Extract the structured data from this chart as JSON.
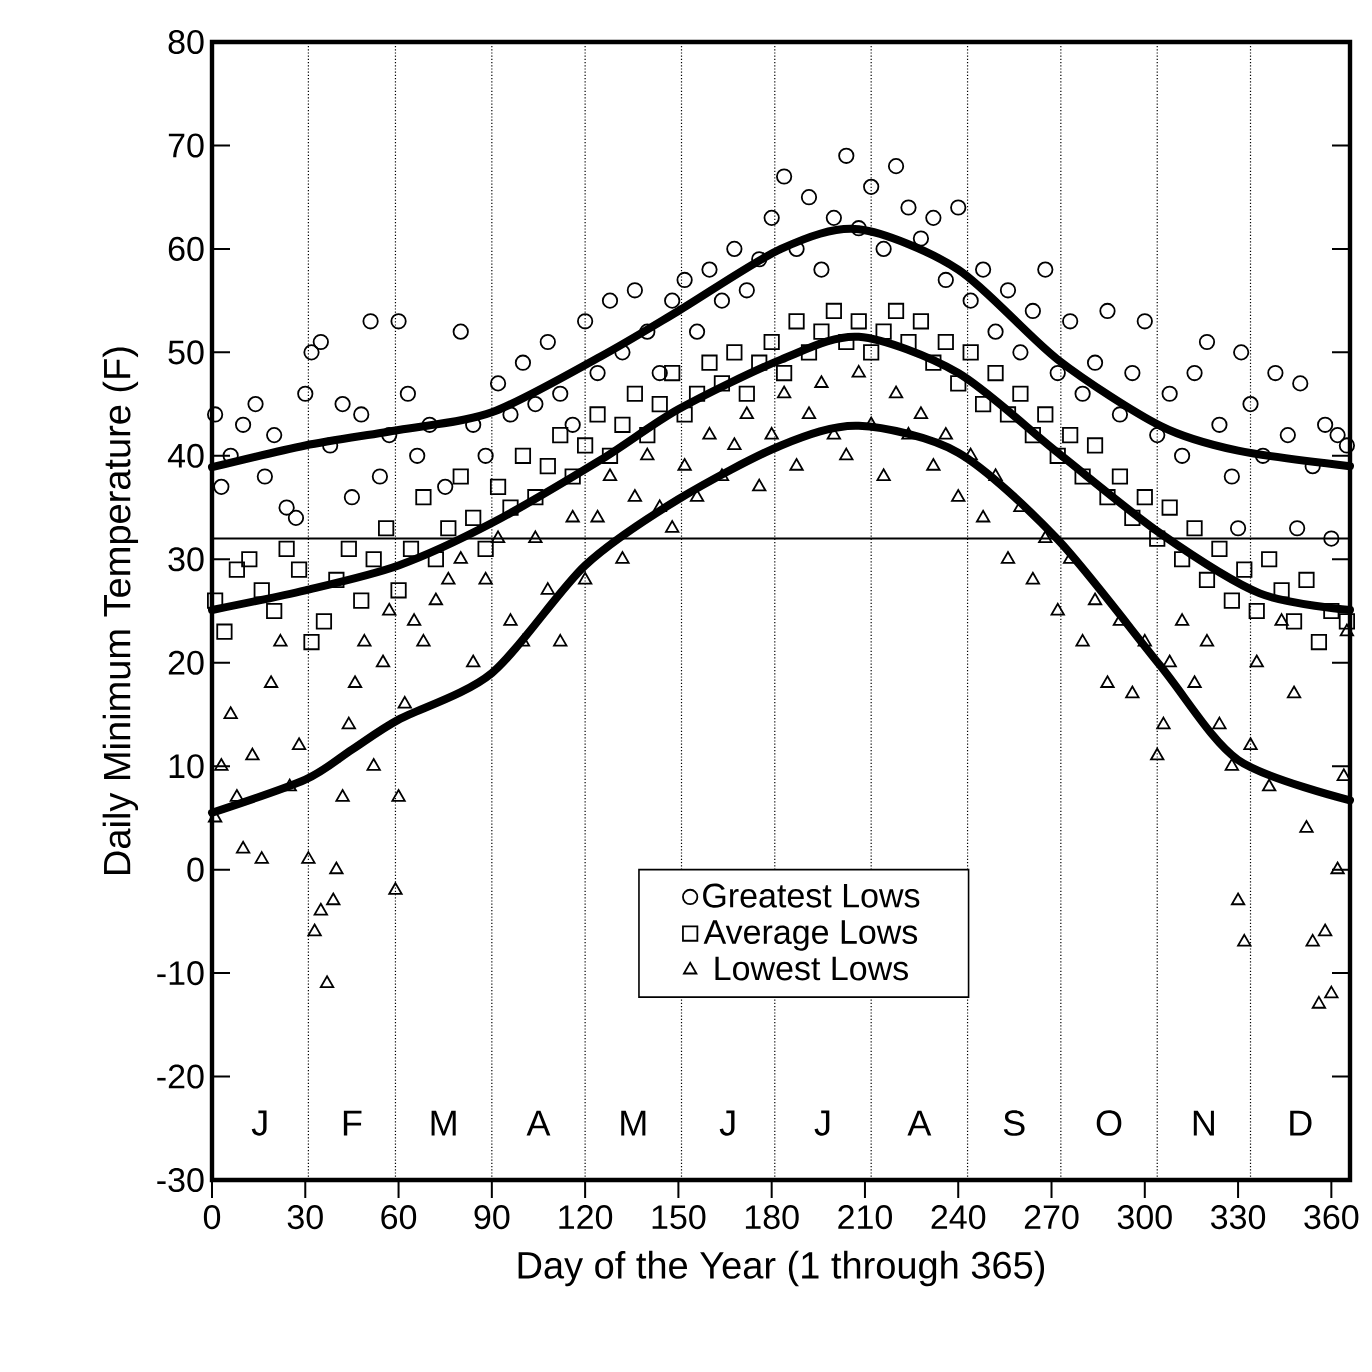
{
  "chart_data": {
    "type": "scatter",
    "xlabel": "Day of the Year (1 through 365)",
    "ylabel": "Daily Minimum Temperature (F)",
    "xlim": [
      0,
      366
    ],
    "ylim": [
      -30,
      80
    ],
    "xticks": [
      0,
      30,
      60,
      90,
      120,
      150,
      180,
      210,
      240,
      270,
      300,
      330,
      360
    ],
    "yticks": [
      -30,
      -20,
      -10,
      0,
      10,
      20,
      30,
      40,
      50,
      60,
      70,
      80
    ],
    "legend": "bottom",
    "series": [
      {
        "name": "Greatest Lows",
        "marker": "circle",
        "color": "#000000",
        "x": [
          1,
          3,
          6,
          10,
          14,
          17,
          20,
          24,
          27,
          30,
          32,
          35,
          38,
          42,
          45,
          48,
          51,
          54,
          57,
          60,
          63,
          66,
          70,
          75,
          80,
          84,
          88,
          92,
          96,
          100,
          104,
          108,
          112,
          116,
          120,
          124,
          128,
          132,
          136,
          140,
          144,
          148,
          152,
          156,
          160,
          164,
          168,
          172,
          176,
          180,
          184,
          188,
          192,
          196,
          200,
          204,
          208,
          212,
          216,
          220,
          224,
          228,
          232,
          236,
          240,
          244,
          248,
          252,
          256,
          260,
          264,
          268,
          272,
          276,
          280,
          284,
          288,
          292,
          296,
          300,
          304,
          308,
          312,
          316,
          320,
          324,
          328,
          330,
          331,
          334,
          338,
          342,
          346,
          349,
          350,
          354,
          358,
          360,
          362,
          365
        ],
        "values": [
          44,
          37,
          40,
          43,
          45,
          38,
          42,
          35,
          34,
          46,
          50,
          51,
          41,
          45,
          36,
          44,
          53,
          38,
          42,
          53,
          46,
          40,
          43,
          37,
          52,
          43,
          40,
          47,
          44,
          49,
          45,
          51,
          46,
          43,
          53,
          48,
          55,
          50,
          56,
          52,
          48,
          55,
          57,
          52,
          58,
          55,
          60,
          56,
          59,
          63,
          67,
          60,
          65,
          58,
          63,
          69,
          62,
          66,
          60,
          68,
          64,
          61,
          63,
          57,
          64,
          55,
          58,
          52,
          56,
          50,
          54,
          58,
          48,
          53,
          46,
          49,
          54,
          44,
          48,
          53,
          42,
          46,
          40,
          48,
          51,
          43,
          38,
          33,
          50,
          45,
          40,
          48,
          42,
          33,
          47,
          39,
          43,
          32,
          42,
          41
        ]
      },
      {
        "name": "Average Lows",
        "marker": "square",
        "color": "#000000",
        "x": [
          1,
          4,
          8,
          12,
          16,
          20,
          24,
          28,
          32,
          36,
          40,
          44,
          48,
          52,
          56,
          60,
          64,
          68,
          72,
          76,
          80,
          84,
          88,
          92,
          96,
          100,
          104,
          108,
          112,
          116,
          120,
          124,
          128,
          132,
          136,
          140,
          144,
          148,
          152,
          156,
          160,
          164,
          168,
          172,
          176,
          180,
          184,
          188,
          192,
          196,
          200,
          204,
          208,
          212,
          216,
          220,
          224,
          228,
          232,
          236,
          240,
          244,
          248,
          252,
          256,
          260,
          264,
          268,
          272,
          276,
          280,
          284,
          288,
          292,
          296,
          300,
          304,
          308,
          312,
          316,
          320,
          324,
          328,
          332,
          336,
          340,
          344,
          348,
          352,
          356,
          360,
          365
        ],
        "values": [
          26,
          23,
          29,
          30,
          27,
          25,
          31,
          29,
          22,
          24,
          28,
          31,
          26,
          30,
          33,
          27,
          31,
          36,
          30,
          33,
          38,
          34,
          31,
          37,
          35,
          40,
          36,
          39,
          42,
          38,
          41,
          44,
          40,
          43,
          46,
          42,
          45,
          48,
          44,
          46,
          49,
          47,
          50,
          46,
          49,
          51,
          48,
          53,
          50,
          52,
          54,
          51,
          53,
          50,
          52,
          54,
          51,
          53,
          49,
          51,
          47,
          50,
          45,
          48,
          44,
          46,
          42,
          44,
          40,
          42,
          38,
          41,
          36,
          38,
          34,
          36,
          32,
          35,
          30,
          33,
          28,
          31,
          26,
          29,
          25,
          30,
          27,
          24,
          28,
          22,
          25,
          24
        ]
      },
      {
        "name": "Lowest Lows",
        "marker": "triangle",
        "color": "#000000",
        "x": [
          1,
          3,
          6,
          8,
          10,
          13,
          16,
          19,
          22,
          25,
          28,
          31,
          33,
          35,
          37,
          39,
          40,
          42,
          44,
          46,
          49,
          52,
          55,
          57,
          59,
          60,
          62,
          65,
          68,
          72,
          76,
          80,
          84,
          88,
          92,
          96,
          100,
          104,
          108,
          112,
          116,
          120,
          124,
          128,
          132,
          136,
          140,
          144,
          148,
          152,
          156,
          160,
          164,
          168,
          172,
          176,
          180,
          184,
          188,
          192,
          196,
          200,
          204,
          208,
          212,
          216,
          220,
          224,
          228,
          232,
          236,
          240,
          244,
          248,
          252,
          256,
          260,
          264,
          268,
          272,
          276,
          280,
          284,
          288,
          292,
          296,
          300,
          304,
          306,
          308,
          312,
          316,
          320,
          324,
          328,
          330,
          332,
          334,
          336,
          340,
          344,
          348,
          352,
          354,
          356,
          358,
          360,
          362,
          364,
          365
        ],
        "values": [
          5,
          10,
          15,
          7,
          2,
          11,
          1,
          18,
          22,
          8,
          12,
          1,
          -6,
          -4,
          -11,
          -3,
          0,
          7,
          14,
          18,
          22,
          10,
          20,
          25,
          -2,
          7,
          16,
          24,
          22,
          26,
          28,
          30,
          20,
          28,
          32,
          24,
          22,
          32,
          27,
          22,
          34,
          28,
          34,
          38,
          30,
          36,
          40,
          35,
          33,
          39,
          36,
          42,
          38,
          41,
          44,
          37,
          42,
          46,
          39,
          44,
          47,
          42,
          40,
          48,
          43,
          38,
          46,
          42,
          44,
          39,
          42,
          36,
          40,
          34,
          38,
          30,
          35,
          28,
          32,
          25,
          30,
          22,
          26,
          18,
          24,
          17,
          22,
          11,
          14,
          20,
          24,
          18,
          22,
          14,
          10,
          -3,
          -7,
          12,
          20,
          8,
          24,
          17,
          4,
          -7,
          -13,
          -6,
          -12,
          0,
          9,
          23
        ]
      },
      {
        "type": "line",
        "line_style": "solid",
        "color": "#000000",
        "x": [
          0,
          30,
          60,
          90,
          125,
          150,
          183,
          208,
          240,
          272,
          305,
          330,
          366
        ],
        "values": [
          38.9,
          41,
          42.5,
          44.2,
          49.6,
          54,
          60,
          61.9,
          58,
          49.3,
          42.9,
          40.5,
          39
        ]
      },
      {
        "type": "line",
        "line_style": "solid",
        "color": "#000000",
        "x": [
          0,
          30,
          60,
          90,
          125,
          150,
          183,
          208,
          240,
          272,
          305,
          337,
          366
        ],
        "values": [
          25.1,
          27,
          29.4,
          33.5,
          39.6,
          44.5,
          49.3,
          51.5,
          48,
          40.3,
          32.5,
          26.7,
          25.1
        ]
      },
      {
        "type": "line",
        "line_style": "solid",
        "color": "#000000",
        "x": [
          0,
          30,
          45,
          60,
          90,
          120,
          150,
          183,
          208,
          240,
          272,
          305,
          330,
          366
        ],
        "values": [
          5.5,
          8.7,
          11.6,
          14.5,
          19,
          29.4,
          35.8,
          41,
          42.9,
          40.3,
          31.9,
          19.7,
          10.6,
          6.7
        ]
      }
    ],
    "ref_lines": [
      {
        "axis": "y",
        "value": 32,
        "line_style": "solid",
        "color": "#000000"
      },
      {
        "axis": "x",
        "value": 31,
        "line_style": "dotted",
        "color": "#000000"
      },
      {
        "axis": "x",
        "value": 59,
        "line_style": "dotted",
        "color": "#000000"
      },
      {
        "axis": "x",
        "value": 90,
        "line_style": "dotted",
        "color": "#000000"
      },
      {
        "axis": "x",
        "value": 120,
        "line_style": "dotted",
        "color": "#000000"
      },
      {
        "axis": "x",
        "value": 151,
        "line_style": "dotted",
        "color": "#000000"
      },
      {
        "axis": "x",
        "value": 181,
        "line_style": "dotted",
        "color": "#000000"
      },
      {
        "axis": "x",
        "value": 212,
        "line_style": "dotted",
        "color": "#000000"
      },
      {
        "axis": "x",
        "value": 243,
        "line_style": "dotted",
        "color": "#000000"
      },
      {
        "axis": "x",
        "value": 273,
        "line_style": "dotted",
        "color": "#000000"
      },
      {
        "axis": "x",
        "value": 304,
        "line_style": "dotted",
        "color": "#000000"
      },
      {
        "axis": "x",
        "value": 334,
        "line_style": "dotted",
        "color": "#000000"
      }
    ],
    "annotations": [
      "J",
      "F",
      "M",
      "A",
      "M",
      "J",
      "J",
      "A",
      "S",
      "O",
      "N",
      "D"
    ]
  }
}
